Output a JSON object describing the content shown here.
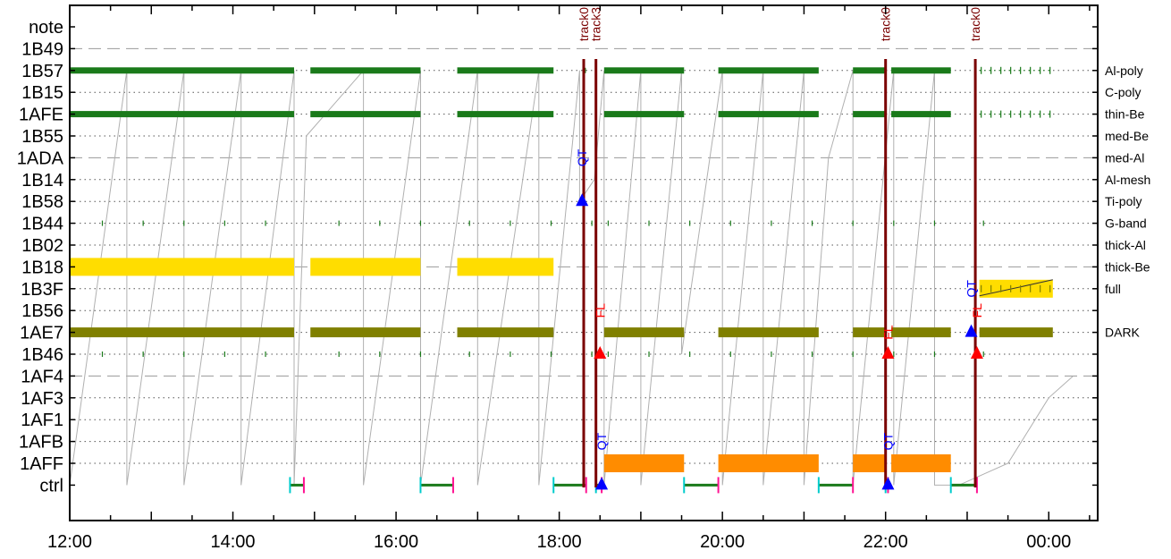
{
  "chart_data": {
    "type": "timeline",
    "title": "",
    "x_axis": {
      "unit": "hours",
      "range": [
        12.0,
        24.6
      ],
      "ticks": [
        {
          "value": 12,
          "label": "12:00"
        },
        {
          "value": 14,
          "label": "14:00"
        },
        {
          "value": 16,
          "label": "16:00"
        },
        {
          "value": 18,
          "label": "18:00"
        },
        {
          "value": 20,
          "label": "20:00"
        },
        {
          "value": 22,
          "label": "22:00"
        },
        {
          "value": 24,
          "label": "00:00"
        }
      ]
    },
    "rows": [
      "note",
      "1B49",
      "1B57",
      "1B15",
      "1AFE",
      "1B55",
      "1ADA",
      "1B14",
      "1B58",
      "1B44",
      "1B02",
      "1B18",
      "1B3F",
      "1B56",
      "1AE7",
      "1B46",
      "1AF4",
      "1AF3",
      "1AF1",
      "1AFB",
      "1AFF",
      "ctrl"
    ],
    "dashed_rows": [
      "1B49",
      "1ADA",
      "1B18",
      "1AF4"
    ],
    "right_labels": [
      {
        "row": "1B57",
        "text": "Al-poly"
      },
      {
        "row": "1B15",
        "text": "C-poly"
      },
      {
        "row": "1AFE",
        "text": "thin-Be"
      },
      {
        "row": "1B55",
        "text": "med-Be"
      },
      {
        "row": "1ADA",
        "text": "med-Al"
      },
      {
        "row": "1B14",
        "text": "Al-mesh"
      },
      {
        "row": "1B58",
        "text": "Ti-poly"
      },
      {
        "row": "1B44",
        "text": "G-band"
      },
      {
        "row": "1B02",
        "text": "thick-Al"
      },
      {
        "row": "1B18",
        "text": "thick-Be"
      },
      {
        "row": "1B3F",
        "text": "full"
      },
      {
        "row": "1AE7",
        "text": "DARK"
      }
    ],
    "tracks": [
      {
        "time": 18.3,
        "label": "track0"
      },
      {
        "time": 18.45,
        "label": "track3"
      },
      {
        "time": 22.0,
        "label": "track0"
      },
      {
        "time": 23.1,
        "label": "track0"
      }
    ],
    "segments": [
      {
        "row": "1B57",
        "start": 12.0,
        "end": 14.75,
        "color": "#1a7a1a",
        "style": "hatch"
      },
      {
        "row": "1B57",
        "start": 14.95,
        "end": 16.3,
        "color": "#1a7a1a",
        "style": "hatch"
      },
      {
        "row": "1B57",
        "start": 16.75,
        "end": 17.93,
        "color": "#1a7a1a",
        "style": "hatch"
      },
      {
        "row": "1B57",
        "start": 18.55,
        "end": 19.53,
        "color": "#1a7a1a",
        "style": "hatch"
      },
      {
        "row": "1B57",
        "start": 19.95,
        "end": 21.18,
        "color": "#1a7a1a",
        "style": "hatch"
      },
      {
        "row": "1B57",
        "start": 21.6,
        "end": 22.0,
        "color": "#1a7a1a",
        "style": "hatch"
      },
      {
        "row": "1B57",
        "start": 22.07,
        "end": 22.8,
        "color": "#1a7a1a",
        "style": "hatch"
      },
      {
        "row": "1B57",
        "start": 23.15,
        "end": 24.05,
        "color": "#1a7a1a",
        "style": "ticks"
      },
      {
        "row": "1AFE",
        "start": 12.0,
        "end": 14.75,
        "color": "#1a7a1a",
        "style": "hatch"
      },
      {
        "row": "1AFE",
        "start": 14.95,
        "end": 16.3,
        "color": "#1a7a1a",
        "style": "hatch"
      },
      {
        "row": "1AFE",
        "start": 16.75,
        "end": 17.93,
        "color": "#1a7a1a",
        "style": "hatch"
      },
      {
        "row": "1AFE",
        "start": 18.55,
        "end": 19.53,
        "color": "#1a7a1a",
        "style": "hatch"
      },
      {
        "row": "1AFE",
        "start": 19.95,
        "end": 21.18,
        "color": "#1a7a1a",
        "style": "hatch"
      },
      {
        "row": "1AFE",
        "start": 21.6,
        "end": 22.0,
        "color": "#1a7a1a",
        "style": "hatch"
      },
      {
        "row": "1AFE",
        "start": 22.07,
        "end": 22.8,
        "color": "#1a7a1a",
        "style": "hatch"
      },
      {
        "row": "1AFE",
        "start": 23.15,
        "end": 24.05,
        "color": "#1a7a1a",
        "style": "ticks"
      },
      {
        "row": "1B18",
        "start": 12.0,
        "end": 14.75,
        "color": "#ffdd00",
        "style": "solid"
      },
      {
        "row": "1B18",
        "start": 14.95,
        "end": 16.3,
        "color": "#ffdd00",
        "style": "solid"
      },
      {
        "row": "1B18",
        "start": 16.75,
        "end": 17.93,
        "color": "#ffdd00",
        "style": "solid"
      },
      {
        "row": "1AE7",
        "start": 12.0,
        "end": 14.75,
        "color": "#808000",
        "style": "solid"
      },
      {
        "row": "1AE7",
        "start": 14.95,
        "end": 16.3,
        "color": "#808000",
        "style": "solid"
      },
      {
        "row": "1AE7",
        "start": 16.75,
        "end": 17.93,
        "color": "#808000",
        "style": "solid"
      },
      {
        "row": "1AE7",
        "start": 18.55,
        "end": 19.53,
        "color": "#808000",
        "style": "solid"
      },
      {
        "row": "1AE7",
        "start": 19.95,
        "end": 21.18,
        "color": "#808000",
        "style": "solid"
      },
      {
        "row": "1AE7",
        "start": 21.6,
        "end": 22.0,
        "color": "#808000",
        "style": "solid"
      },
      {
        "row": "1AE7",
        "start": 22.07,
        "end": 22.8,
        "color": "#808000",
        "style": "solid"
      },
      {
        "row": "1AE7",
        "start": 23.15,
        "end": 24.05,
        "color": "#808000",
        "style": "solid"
      },
      {
        "row": "1B3F",
        "start": 23.15,
        "end": 24.05,
        "color": "#ffdd00",
        "style": "ticks"
      },
      {
        "row": "1AFF",
        "start": 18.55,
        "end": 19.53,
        "color": "#ff8c00",
        "style": "solid"
      },
      {
        "row": "1AFF",
        "start": 19.95,
        "end": 21.18,
        "color": "#ff8c00",
        "style": "solid"
      },
      {
        "row": "1AFF",
        "start": 21.6,
        "end": 22.0,
        "color": "#ff8c00",
        "style": "solid"
      },
      {
        "row": "1AFF",
        "start": 22.07,
        "end": 22.8,
        "color": "#ff8c00",
        "style": "solid"
      }
    ],
    "sparse_ticks": [
      {
        "row": "1B44",
        "times": [
          12.4,
          12.9,
          13.4,
          13.9,
          14.4,
          15.3,
          15.8,
          16.3,
          16.9,
          17.4,
          17.9,
          18.4,
          18.6,
          19.1,
          19.6,
          20.1,
          20.6,
          21.1,
          21.6,
          22.1,
          22.6,
          23.2
        ]
      },
      {
        "row": "1B46",
        "times": [
          12.4,
          12.9,
          13.4,
          13.9,
          14.4,
          15.3,
          15.8,
          16.3,
          16.9,
          17.4,
          17.9,
          18.4,
          18.6,
          19.1,
          19.6,
          20.1,
          20.6,
          21.1,
          21.6,
          22.1,
          22.6,
          23.2
        ]
      },
      {
        "row": "1B57",
        "times": [
          18.32
        ]
      }
    ],
    "markers": [
      {
        "time": 18.28,
        "row": "1B58",
        "shape": "up-triangle",
        "color": "#0000ff",
        "label": "QT",
        "label_color": "#0000ff",
        "label_row": "1ADA"
      },
      {
        "time": 18.5,
        "row": "1B46",
        "shape": "up-triangle",
        "color": "#ff0000",
        "label": "FL",
        "label_color": "#ff0000",
        "label_row": "1B56"
      },
      {
        "time": 18.52,
        "row": "ctrl",
        "shape": "up-triangle",
        "color": "#0000ff",
        "label": "QT",
        "label_color": "#0000ff",
        "label_row": "1AFB"
      },
      {
        "time": 22.03,
        "row": "1B46",
        "shape": "up-triangle",
        "color": "#ff0000",
        "label": "FL",
        "label_color": "#ff0000",
        "label_row": "1AE7"
      },
      {
        "time": 22.03,
        "row": "ctrl",
        "shape": "up-triangle",
        "color": "#0000ff",
        "label": "QT",
        "label_color": "#0000ff",
        "label_row": "1AFB"
      },
      {
        "time": 23.05,
        "row": "1AE7",
        "shape": "up-triangle",
        "color": "#0000ff",
        "label": "QT",
        "label_color": "#0000ff",
        "label_row": "1B3F"
      },
      {
        "time": 23.12,
        "row": "1B46",
        "shape": "up-triangle",
        "color": "#ff0000",
        "label": "FL",
        "label_color": "#ff0000",
        "label_row": "1B56"
      }
    ],
    "ctrl_bars": [
      {
        "start": 14.7,
        "end": 14.87
      },
      {
        "start": 16.3,
        "end": 16.7
      },
      {
        "start": 17.93,
        "end": 18.33
      },
      {
        "start": 18.45,
        "end": 18.52
      },
      {
        "start": 19.53,
        "end": 19.95
      },
      {
        "start": 21.18,
        "end": 21.6
      },
      {
        "start": 22.0,
        "end": 22.03
      },
      {
        "start": 22.8,
        "end": 23.12
      }
    ],
    "sawtooth": {
      "color": "#b0b0b0",
      "points": [
        [
          12.0,
          "ctrl"
        ],
        [
          12.7,
          "1B57"
        ],
        [
          12.7,
          "ctrl"
        ],
        [
          13.4,
          "1B57"
        ],
        [
          13.4,
          "ctrl"
        ],
        [
          14.1,
          "1B57"
        ],
        [
          14.1,
          "ctrl"
        ],
        [
          14.75,
          "1B57"
        ],
        [
          14.75,
          "ctrl"
        ],
        [
          14.9,
          "1B55"
        ],
        [
          15.6,
          "1B57"
        ],
        [
          15.6,
          "ctrl"
        ],
        [
          16.3,
          "1B57"
        ],
        [
          16.3,
          "ctrl"
        ],
        [
          17.0,
          "1B57"
        ],
        [
          17.0,
          "ctrl"
        ],
        [
          17.75,
          "1B57"
        ],
        [
          17.75,
          "ctrl"
        ],
        [
          18.25,
          "1B57"
        ],
        [
          18.25,
          "1B58"
        ],
        [
          18.43,
          "1B14"
        ],
        [
          18.55,
          "1B57"
        ],
        [
          18.55,
          "ctrl"
        ],
        [
          19.0,
          "1B57"
        ],
        [
          19.0,
          "ctrl"
        ],
        [
          19.5,
          "1B57"
        ],
        [
          19.5,
          "1B46"
        ],
        [
          20.0,
          "1B57"
        ],
        [
          20.0,
          "ctrl"
        ],
        [
          20.5,
          "1B57"
        ],
        [
          20.5,
          "ctrl"
        ],
        [
          21.0,
          "1B57"
        ],
        [
          21.0,
          "ctrl"
        ],
        [
          21.3,
          "1ADA"
        ],
        [
          21.6,
          "1B57"
        ],
        [
          21.6,
          "ctrl"
        ],
        [
          22.1,
          "1B57"
        ],
        [
          22.1,
          "ctrl"
        ],
        [
          22.6,
          "1B57"
        ],
        [
          22.6,
          "ctrl"
        ],
        [
          22.9,
          "ctrl"
        ],
        [
          23.5,
          "1AFF"
        ],
        [
          24.0,
          "1AF3"
        ],
        [
          24.3,
          "1AF4"
        ]
      ]
    },
    "colors": {
      "track": "#7a0000",
      "ctrl_bar": "#1a7a1a",
      "ctrl_start": "#00cccc",
      "ctrl_end": "#ff1493",
      "grid": "#888888"
    }
  }
}
